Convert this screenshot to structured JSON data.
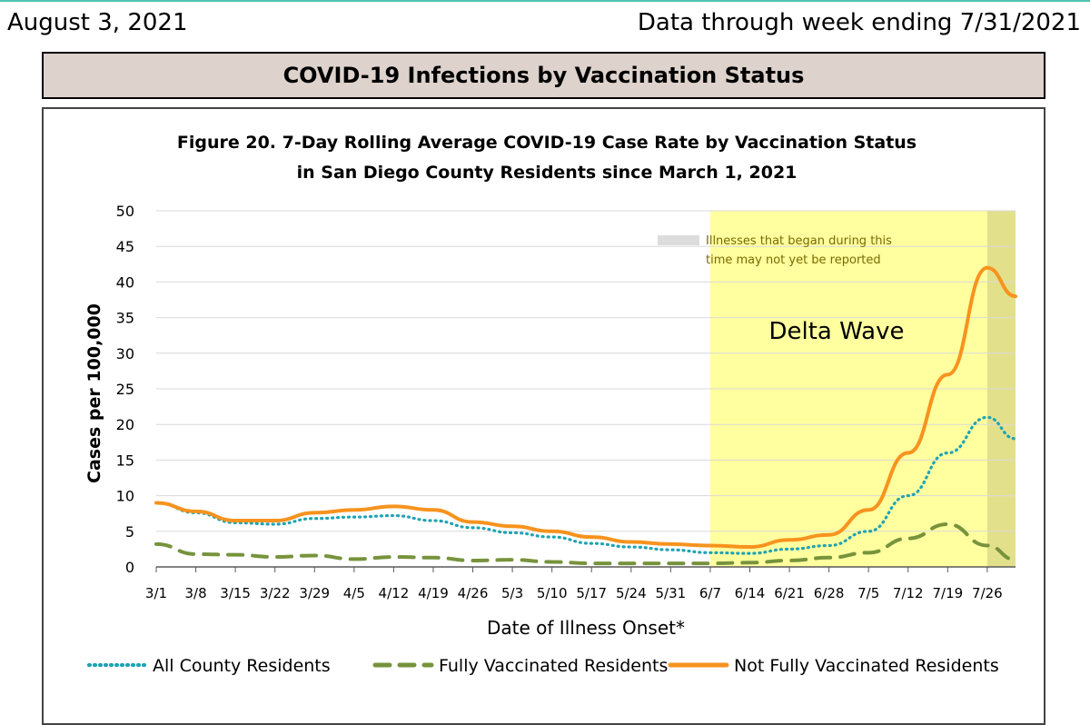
{
  "header": {
    "date": "August 3, 2021",
    "data_through": "Data through week ending 7/31/2021"
  },
  "banner": {
    "title": "COVID-19 Infections by Vaccination Status"
  },
  "colors": {
    "all": "#1fa3b4",
    "fully": "#77933c",
    "not_fully": "#f7931e",
    "delta_shade": "#ffff9f",
    "incomplete_shade": "#e3e08c",
    "banner_bg": "#ddd2cc"
  },
  "chart_data": {
    "type": "line",
    "title": "Figure 20. 7-Day Rolling Average COVID-19 Case Rate by Vaccination Status",
    "subtitle": "in San Diego County Residents since March 1, 2021",
    "xlabel": "Date of Illness Onset*",
    "ylabel": "Cases per 100,000",
    "ylim": [
      0,
      50
    ],
    "yticks": [
      0,
      5,
      10,
      15,
      20,
      25,
      30,
      35,
      40,
      45,
      50
    ],
    "x_tick_labels": [
      "3/1",
      "3/8",
      "3/15",
      "3/22",
      "3/29",
      "4/5",
      "4/12",
      "4/19",
      "4/26",
      "5/3",
      "5/10",
      "5/17",
      "5/24",
      "5/31",
      "6/7",
      "6/14",
      "6/21",
      "6/28",
      "7/5",
      "7/12",
      "7/19",
      "7/26"
    ],
    "x": [
      "3/1",
      "3/8",
      "3/15",
      "3/22",
      "3/29",
      "4/5",
      "4/12",
      "4/19",
      "4/26",
      "5/3",
      "5/10",
      "5/17",
      "5/24",
      "5/31",
      "6/7",
      "6/14",
      "6/21",
      "6/28",
      "7/5",
      "7/12",
      "7/19",
      "7/26",
      "7/31"
    ],
    "grid": true,
    "legend_position": "bottom",
    "series": [
      {
        "name": "All County Residents",
        "style": "dotted",
        "values": [
          9.0,
          7.6,
          6.2,
          6.0,
          6.8,
          7.0,
          7.2,
          6.5,
          5.5,
          4.8,
          4.2,
          3.3,
          2.8,
          2.4,
          2.0,
          1.9,
          2.5,
          3.0,
          5.0,
          10.0,
          16.0,
          21.0,
          18.0
        ]
      },
      {
        "name": "Fully Vaccinated Residents",
        "style": "dashed",
        "values": [
          3.2,
          1.8,
          1.7,
          1.4,
          1.6,
          1.1,
          1.4,
          1.3,
          0.9,
          1.0,
          0.7,
          0.5,
          0.5,
          0.5,
          0.5,
          0.6,
          0.9,
          1.3,
          2.0,
          4.0,
          6.0,
          3.0,
          1.0
        ]
      },
      {
        "name": "Not Fully Vaccinated Residents",
        "style": "solid",
        "values": [
          9.0,
          7.8,
          6.5,
          6.5,
          7.6,
          8.0,
          8.5,
          8.0,
          6.3,
          5.7,
          5.0,
          4.2,
          3.5,
          3.2,
          3.0,
          2.8,
          3.8,
          4.5,
          8.0,
          16.0,
          27.0,
          42.0,
          38.0
        ]
      }
    ],
    "annotations": {
      "delta_wave": {
        "label": "Delta Wave",
        "start": "6/7",
        "end": "7/31"
      },
      "incomplete": {
        "label_line1": "Illnesses that began during this",
        "label_line2": "time may not yet be reported",
        "start": "7/26",
        "end": "7/31"
      }
    }
  }
}
